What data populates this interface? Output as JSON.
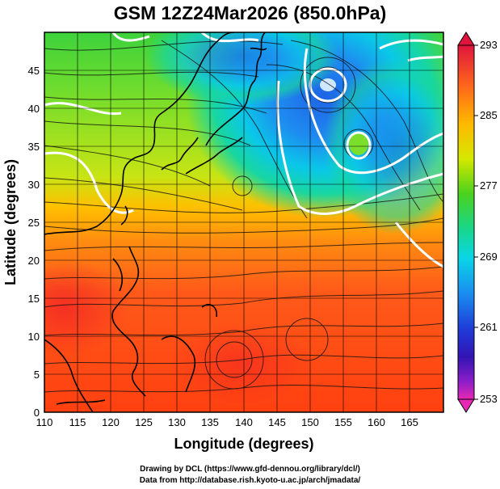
{
  "title": "GSM 12Z24Mar2026 (850.0hPa)",
  "x_axis": {
    "label": "Longitude (degrees)",
    "ticks": [
      "110",
      "115",
      "120",
      "125",
      "130",
      "135",
      "140",
      "145",
      "150",
      "155",
      "160",
      "165"
    ]
  },
  "y_axis": {
    "label": "Latitude  (degrees)",
    "ticks": [
      "0",
      "5",
      "10",
      "15",
      "20",
      "25",
      "30",
      "35",
      "40",
      "45"
    ]
  },
  "colorbar": {
    "labels": [
      "293",
      "285",
      "277",
      "269",
      "261",
      "253"
    ],
    "colors": [
      "#e0143c",
      "#ff6a1a",
      "#ffb800",
      "#d6e800",
      "#4ad21e",
      "#18d68c",
      "#0ad6e6",
      "#1a8ef0",
      "#1e3cd8",
      "#3214b4",
      "#8c1ec8",
      "#e628b4"
    ]
  },
  "map": {
    "lon_range": [
      110,
      170
    ],
    "lat_range": [
      0,
      50
    ],
    "field": "temperature 850hPa (K) with streamlines",
    "features": [
      "thick white contour lines",
      "black coastlines",
      "black streamlines with arrows",
      "grid lines every 5 degrees"
    ]
  },
  "credits": {
    "line1": "Drawing by DCL (https://www.gfd-dennou.org/library/dcl/)",
    "line2": "Data from http://database.rish.kyoto-u.ac.jp/arch/jmadata/"
  }
}
